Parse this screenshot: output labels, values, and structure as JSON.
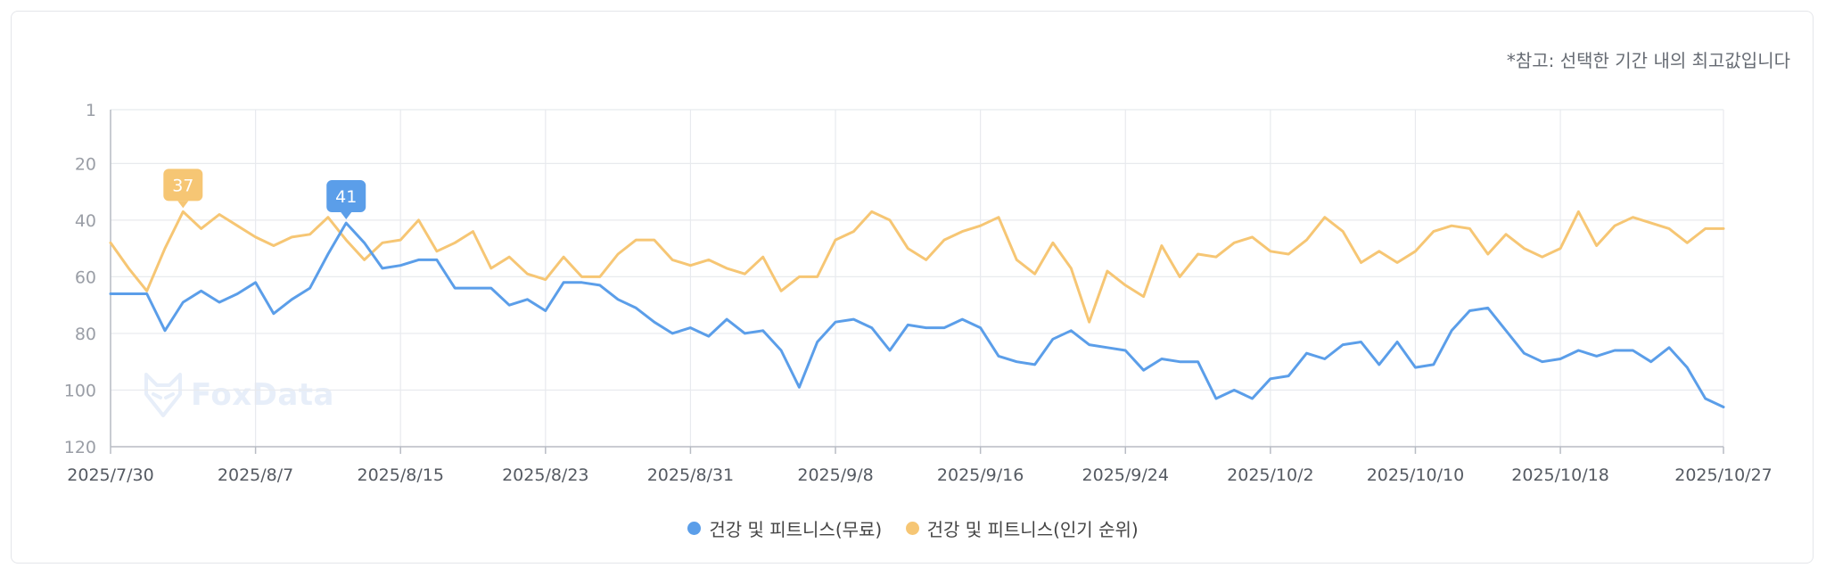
{
  "note": "*참고: 선택한 기간 내의 최고값입니다",
  "watermark": "FoxData",
  "colors": {
    "free": "#5b9ee9",
    "popular": "#f6c674",
    "grid": "#e8eaee",
    "axis": "#b8bcc4",
    "tick": "#9a9ea6"
  },
  "legend": [
    {
      "label": "건강 및 피트니스(무료)",
      "color": "#5b9ee9"
    },
    {
      "label": "건강 및 피트니스(인기 순위)",
      "color": "#f6c674"
    }
  ],
  "chart_data": {
    "type": "line",
    "y_reversed": true,
    "ylim": [
      1,
      120
    ],
    "y_ticks": [
      1,
      20,
      40,
      60,
      80,
      100,
      120
    ],
    "x_start": "2025/7/30",
    "x_end": "2025/10/27",
    "x_ticks": [
      "2025/7/30",
      "2025/8/7",
      "2025/8/15",
      "2025/8/23",
      "2025/8/31",
      "2025/9/8",
      "2025/9/16",
      "2025/9/24",
      "2025/10/2",
      "2025/10/10",
      "2025/10/18",
      "2025/10/27"
    ],
    "grid": true,
    "legend_position": "bottom",
    "series": [
      {
        "name": "건강 및 피트니스(무료)",
        "values": [
          66,
          66,
          66,
          79,
          69,
          65,
          69,
          66,
          62,
          73,
          68,
          64,
          52,
          41,
          48,
          57,
          56,
          54,
          54,
          64,
          64,
          64,
          70,
          68,
          72,
          62,
          62,
          63,
          68,
          71,
          76,
          80,
          78,
          81,
          75,
          80,
          79,
          86,
          99,
          83,
          76,
          75,
          78,
          86,
          77,
          78,
          78,
          75,
          78,
          88,
          90,
          91,
          82,
          79,
          84,
          85,
          86,
          93,
          89,
          90,
          90,
          103,
          100,
          103,
          96,
          95,
          87,
          89,
          84,
          83,
          91,
          83,
          92,
          91,
          79,
          72,
          71,
          79,
          87,
          90,
          89,
          86,
          88,
          86,
          86,
          90,
          85,
          92,
          103,
          106
        ],
        "peak": {
          "label": "41",
          "index": 13
        }
      },
      {
        "name": "건강 및 피트니스(인기 순위)",
        "values": [
          48,
          57,
          65,
          50,
          37,
          43,
          38,
          42,
          46,
          49,
          46,
          45,
          39,
          47,
          54,
          48,
          47,
          40,
          51,
          48,
          44,
          57,
          53,
          59,
          61,
          53,
          60,
          60,
          52,
          47,
          47,
          54,
          56,
          54,
          57,
          59,
          53,
          65,
          60,
          60,
          47,
          44,
          37,
          40,
          50,
          54,
          47,
          44,
          42,
          39,
          54,
          59,
          48,
          57,
          76,
          58,
          63,
          67,
          49,
          60,
          52,
          53,
          48,
          46,
          51,
          52,
          47,
          39,
          44,
          55,
          51,
          55,
          51,
          44,
          42,
          43,
          52,
          45,
          50,
          53,
          50,
          37,
          49,
          42,
          39,
          41,
          43,
          48,
          43,
          43
        ],
        "peak": {
          "label": "37",
          "index": 4
        }
      }
    ]
  }
}
